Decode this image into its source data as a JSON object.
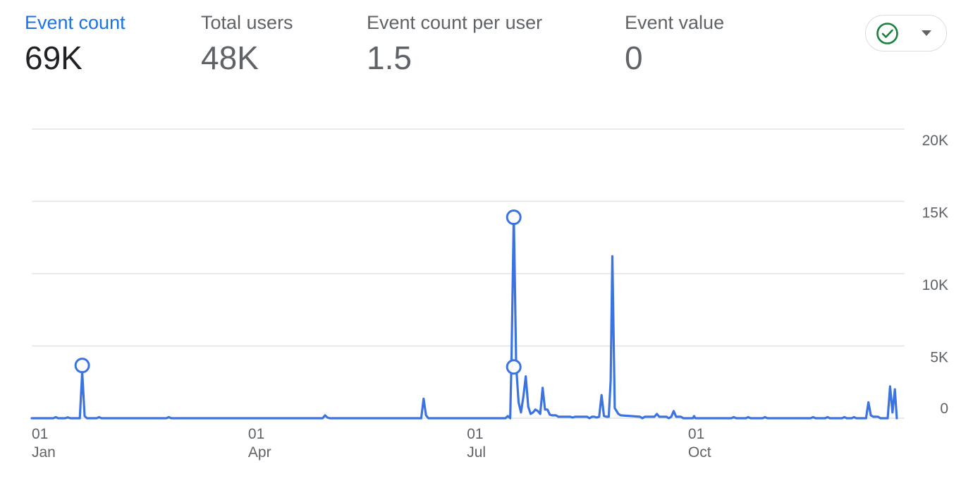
{
  "metrics": [
    {
      "label": "Event count",
      "value": "69K",
      "active": true
    },
    {
      "label": "Total users",
      "value": "48K",
      "active": false
    },
    {
      "label": "Event count per user",
      "value": "1.5",
      "active": false
    },
    {
      "label": "Event value",
      "value": "0",
      "active": false
    }
  ],
  "compare_control": {
    "icon": "check-circle-icon",
    "dropdown_icon": "caret-down-icon",
    "color": "#188038"
  },
  "colors": {
    "line": "#3b74e0",
    "grid": "#e3e3e3",
    "axis_text": "#5f6368",
    "active_tab": "#1a73e8"
  },
  "chart_data": {
    "type": "line",
    "title": "",
    "xlabel": "",
    "ylabel": "",
    "ylim": [
      0,
      20000
    ],
    "y_ticks": [
      "20K",
      "15K",
      "10K",
      "5K",
      "0"
    ],
    "y_tick_values": [
      20000,
      15000,
      10000,
      5000,
      0
    ],
    "x_ticks": [
      {
        "day": 1,
        "label_top": "01",
        "label_bottom": "Jan"
      },
      {
        "day": 91,
        "label_top": "01",
        "label_bottom": "Apr"
      },
      {
        "day": 182,
        "label_top": "01",
        "label_bottom": "Jul"
      },
      {
        "day": 274,
        "label_top": "01",
        "label_bottom": "Oct"
      }
    ],
    "x_range": [
      1,
      362
    ],
    "series": [
      {
        "color": "#3b74e0",
        "points": [
          [
            1,
            0
          ],
          [
            10,
            0
          ],
          [
            11,
            80
          ],
          [
            12,
            0
          ],
          [
            15,
            0
          ],
          [
            16,
            60
          ],
          [
            17,
            0
          ],
          [
            21,
            0
          ],
          [
            22,
            3200
          ],
          [
            23,
            150
          ],
          [
            24,
            0
          ],
          [
            28,
            0
          ],
          [
            29,
            80
          ],
          [
            30,
            0
          ],
          [
            57,
            0
          ],
          [
            58,
            80
          ],
          [
            59,
            0
          ],
          [
            122,
            0
          ],
          [
            123,
            200
          ],
          [
            124,
            50
          ],
          [
            125,
            0
          ],
          [
            163,
            0
          ],
          [
            164,
            1350
          ],
          [
            165,
            200
          ],
          [
            166,
            0
          ],
          [
            180,
            0
          ],
          [
            198,
            0
          ],
          [
            199,
            150
          ],
          [
            200,
            0
          ],
          [
            200.5,
            3600
          ],
          [
            201.5,
            14100
          ],
          [
            202.5,
            3600
          ],
          [
            203.5,
            1100
          ],
          [
            204.5,
            400
          ],
          [
            205.5,
            1500
          ],
          [
            206.5,
            2900
          ],
          [
            207.5,
            800
          ],
          [
            208.5,
            300
          ],
          [
            209.5,
            400
          ],
          [
            210.5,
            600
          ],
          [
            211.5,
            500
          ],
          [
            212.5,
            300
          ],
          [
            213.5,
            2100
          ],
          [
            214.5,
            600
          ],
          [
            215.5,
            600
          ],
          [
            216.5,
            250
          ],
          [
            217.5,
            200
          ],
          [
            219,
            200
          ],
          [
            220,
            100
          ],
          [
            225,
            100
          ],
          [
            226,
            50
          ],
          [
            227,
            100
          ],
          [
            232,
            100
          ],
          [
            233,
            0
          ],
          [
            234,
            100
          ],
          [
            235,
            100
          ],
          [
            236,
            50
          ],
          [
            237,
            100
          ],
          [
            238,
            1600
          ],
          [
            239,
            150
          ],
          [
            240,
            100
          ],
          [
            241,
            100
          ],
          [
            241.8,
            2600
          ],
          [
            242.5,
            11200
          ],
          [
            243.5,
            700
          ],
          [
            245,
            300
          ],
          [
            246,
            200
          ],
          [
            254,
            100
          ],
          [
            255,
            0
          ],
          [
            256,
            100
          ],
          [
            260,
            100
          ],
          [
            261,
            300
          ],
          [
            262,
            100
          ],
          [
            265,
            100
          ],
          [
            266,
            0
          ],
          [
            267,
            100
          ],
          [
            268,
            500
          ],
          [
            269,
            100
          ],
          [
            271,
            100
          ],
          [
            272,
            0
          ],
          [
            276,
            0
          ],
          [
            276.5,
            150
          ],
          [
            277,
            0
          ],
          [
            292,
            0
          ],
          [
            293,
            80
          ],
          [
            294,
            0
          ],
          [
            298,
            0
          ],
          [
            299,
            80
          ],
          [
            300,
            0
          ],
          [
            305,
            0
          ],
          [
            306,
            80
          ],
          [
            307,
            0
          ],
          [
            325,
            0
          ],
          [
            326,
            80
          ],
          [
            327,
            0
          ],
          [
            331,
            0
          ],
          [
            332,
            80
          ],
          [
            333,
            0
          ],
          [
            338,
            0
          ],
          [
            339,
            80
          ],
          [
            340,
            0
          ],
          [
            342,
            0
          ],
          [
            343,
            80
          ],
          [
            344,
            0
          ],
          [
            348,
            0
          ],
          [
            349,
            1100
          ],
          [
            350,
            200
          ],
          [
            351,
            100
          ],
          [
            353,
            100
          ],
          [
            354,
            0
          ],
          [
            357,
            0
          ],
          [
            358,
            2200
          ],
          [
            359,
            400
          ],
          [
            360,
            2000
          ],
          [
            360.8,
            0
          ]
        ]
      }
    ],
    "highlighted_points": [
      [
        22,
        3650
      ],
      [
        201.5,
        13900
      ],
      [
        201.5,
        3550
      ]
    ]
  }
}
